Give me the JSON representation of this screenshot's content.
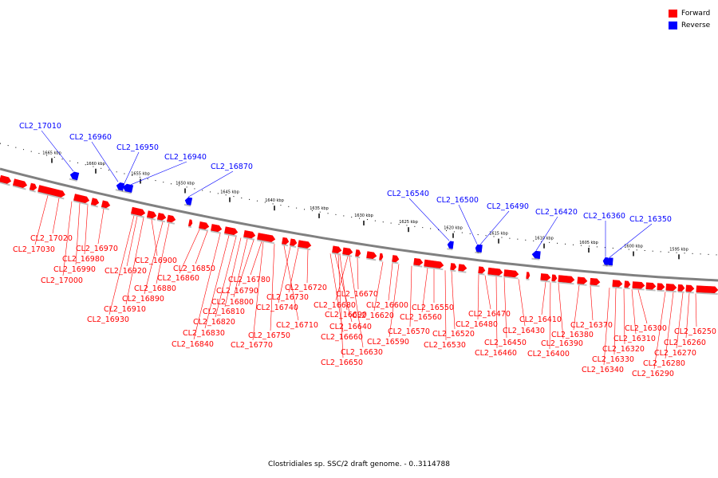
{
  "legend": {
    "forward": {
      "label": "Forward",
      "color": "#ff0000"
    },
    "reverse": {
      "label": "Reverse",
      "color": "#0000ff"
    }
  },
  "caption": "Clostridiales sp. SSC/2 draft genome. - 0..3114788",
  "colors": {
    "forward": "#ff0000",
    "reverse": "#0000ff",
    "backbone": "#808080"
  },
  "scale_ticks": [
    "1665 kbp",
    "1660 kbp",
    "1655 kbp",
    "1650 kbp",
    "1645 kbp",
    "1640 kbp",
    "1635 kbp",
    "1630 kbp",
    "1625 kbp",
    "1620 kbp",
    "1615 kbp",
    "1610 kbp",
    "1605 kbp",
    "1600 kbp",
    "1595 kbp"
  ],
  "reverse_genes": [
    "CL2_17010",
    "CL2_16960",
    "CL2_16950",
    "CL2_16940",
    "CL2_16870",
    "CL2_16540",
    "CL2_16500",
    "CL2_16490",
    "CL2_16420",
    "CL2_16360",
    "CL2_16350"
  ],
  "forward_genes": [
    "CL2_17020",
    "CL2_17030",
    "CL2_16970",
    "CL2_16980",
    "CL2_16990",
    "CL2_17000",
    "CL2_16900",
    "CL2_16920",
    "CL2_16880",
    "CL2_16890",
    "CL2_16910",
    "CL2_16930",
    "CL2_16850",
    "CL2_16860",
    "CL2_16780",
    "CL2_16790",
    "CL2_16800",
    "CL2_16810",
    "CL2_16820",
    "CL2_16830",
    "CL2_16840",
    "CL2_16720",
    "CL2_16730",
    "CL2_16740",
    "CL2_16710",
    "CL2_16750",
    "CL2_16770",
    "CL2_16670",
    "CL2_16680",
    "CL2_16690",
    "CL2_16640",
    "CL2_16660",
    "CL2_16630",
    "CL2_16650",
    "CL2_16600",
    "CL2_16620",
    "CL2_16570",
    "CL2_16590",
    "CL2_16550",
    "CL2_16560",
    "CL2_16520",
    "CL2_16530",
    "CL2_16470",
    "CL2_16480",
    "CL2_16430",
    "CL2_16450",
    "CL2_16460",
    "CL2_16410",
    "CL2_16390",
    "CL2_16400",
    "CL2_16370",
    "CL2_16380",
    "CL2_16300",
    "CL2_16310",
    "CL2_16320",
    "CL2_16330",
    "CL2_16340",
    "CL2_16250",
    "CL2_16260",
    "CL2_16270",
    "CL2_16280",
    "CL2_16290"
  ]
}
